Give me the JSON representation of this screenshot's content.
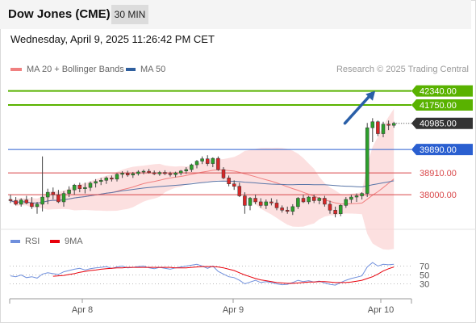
{
  "header": {
    "title": "Dow Jones (CME)",
    "interval": "30 MIN"
  },
  "datetime": "Wednesday, April 9, 2025 11:26:42 PM CET",
  "legend": {
    "main": [
      {
        "label": "MA 20 + Bollinger Bands",
        "color": "#f08080"
      },
      {
        "label": "MA 50",
        "color": "#2f5f9e"
      }
    ],
    "oscillator": [
      {
        "label": "RSI",
        "color": "#6f8fdc"
      },
      {
        "label": "9MA",
        "color": "#e8000b"
      }
    ]
  },
  "research": "Research © 2025 Trading Central",
  "colors": {
    "up_candle": "#2ca02c",
    "down_candle": "#d62728",
    "resistance": "#59b200",
    "pivot": "#2a5fd0",
    "support": "#d9484a",
    "arrow": "#2a5fa8",
    "band_fill": "#fbd5d5"
  },
  "chart_data": [
    {
      "type": "candlestick",
      "x_ticks": [
        "Apr 8",
        "Apr 9",
        "Apr 10"
      ],
      "ylim": [
        36550,
        42900
      ],
      "price_last": 40985.0,
      "levels": [
        {
          "value": 42340.0,
          "label": "42340.00",
          "kind": "resistance"
        },
        {
          "value": 41750.0,
          "label": "41750.00",
          "kind": "resistance"
        },
        {
          "value": 40985.0,
          "label": "40985.00",
          "kind": "last"
        },
        {
          "value": 39890.0,
          "label": "39890.00",
          "kind": "pivot"
        },
        {
          "value": 38910.0,
          "label": "38910.00",
          "kind": "support"
        },
        {
          "value": 38000.0,
          "label": "38000.00",
          "kind": "support"
        }
      ],
      "arrow": {
        "from": [
          62.8,
          40985
        ],
        "to": [
          68.5,
          42340
        ]
      },
      "ohlc": [
        [
          37800,
          38000,
          37650,
          37750
        ],
        [
          37750,
          37900,
          37550,
          37600
        ],
        [
          37600,
          37850,
          37500,
          37780
        ],
        [
          37780,
          37950,
          37600,
          37650
        ],
        [
          37650,
          37900,
          37400,
          37500
        ],
        [
          37500,
          37700,
          37200,
          37600
        ],
        [
          37600,
          39600,
          37300,
          37900
        ],
        [
          37900,
          38250,
          37600,
          38100
        ],
        [
          38100,
          38300,
          37800,
          38000
        ],
        [
          38000,
          38200,
          37650,
          37700
        ],
        [
          37700,
          38150,
          37500,
          38050
        ],
        [
          38050,
          38350,
          37900,
          38200
        ],
        [
          38200,
          38450,
          38000,
          38400
        ],
        [
          38400,
          38500,
          38100,
          38250
        ],
        [
          38250,
          38500,
          38050,
          38300
        ],
        [
          38300,
          38550,
          38150,
          38480
        ],
        [
          38480,
          38650,
          38300,
          38550
        ],
        [
          38550,
          38700,
          38400,
          38600
        ],
        [
          38600,
          38760,
          38450,
          38700
        ],
        [
          38700,
          38800,
          38550,
          38650
        ],
        [
          38650,
          38900,
          38550,
          38850
        ],
        [
          38850,
          38980,
          38700,
          38900
        ],
        [
          38900,
          39000,
          38750,
          38820
        ],
        [
          38820,
          38950,
          38700,
          38880
        ],
        [
          38880,
          39020,
          38800,
          38950
        ],
        [
          38950,
          39050,
          38850,
          38980
        ],
        [
          38980,
          39080,
          38880,
          38920
        ],
        [
          38920,
          39010,
          38820,
          38870
        ],
        [
          38870,
          38990,
          38790,
          38930
        ],
        [
          38930,
          39020,
          38820,
          38880
        ],
        [
          38880,
          38960,
          38760,
          38840
        ],
        [
          38840,
          38960,
          38730,
          38910
        ],
        [
          38910,
          39030,
          38810,
          38990
        ],
        [
          38990,
          39150,
          38870,
          39050
        ],
        [
          39050,
          39300,
          38950,
          39250
        ],
        [
          39250,
          39450,
          39100,
          39400
        ],
        [
          39400,
          39600,
          39280,
          39500
        ],
        [
          39500,
          39650,
          39200,
          39300
        ],
        [
          39300,
          39560,
          39150,
          39520
        ],
        [
          39520,
          39600,
          39000,
          39050
        ],
        [
          39050,
          39150,
          38650,
          38700
        ],
        [
          38700,
          38800,
          38350,
          38450
        ],
        [
          38450,
          38600,
          38200,
          38350
        ],
        [
          38350,
          38500,
          37900,
          37950
        ],
        [
          37950,
          38100,
          37200,
          37550
        ],
        [
          37550,
          37900,
          37350,
          37850
        ],
        [
          37850,
          38000,
          37600,
          37700
        ],
        [
          37700,
          37850,
          37450,
          37550
        ],
        [
          37550,
          37800,
          37400,
          37700
        ],
        [
          37700,
          37850,
          37550,
          37650
        ],
        [
          37650,
          37800,
          37350,
          37450
        ],
        [
          37450,
          37550,
          37250,
          37350
        ],
        [
          37350,
          37500,
          37200,
          37300
        ],
        [
          37300,
          37600,
          37150,
          37500
        ],
        [
          37500,
          37900,
          37400,
          37850
        ],
        [
          37850,
          38000,
          37650,
          37700
        ],
        [
          37700,
          37950,
          37600,
          37900
        ],
        [
          37900,
          38000,
          37650,
          37750
        ],
        [
          37750,
          37900,
          37600,
          37850
        ],
        [
          37850,
          37950,
          37500,
          37600
        ],
        [
          37600,
          37750,
          37200,
          37350
        ],
        [
          37350,
          37500,
          37050,
          37200
        ],
        [
          37200,
          37600,
          37100,
          37550
        ],
        [
          37550,
          37900,
          37450,
          37800
        ],
        [
          37800,
          38000,
          37650,
          37900
        ],
        [
          37900,
          38050,
          37700,
          37950
        ],
        [
          37950,
          38100,
          37800,
          38050
        ],
        [
          38050,
          41000,
          37900,
          40800
        ],
        [
          40800,
          41200,
          40200,
          41050
        ],
        [
          41050,
          41100,
          40450,
          40550
        ],
        [
          40550,
          41050,
          40400,
          40950
        ],
        [
          40950,
          41100,
          40700,
          40900
        ],
        [
          40900,
          41050,
          40800,
          40985
        ]
      ]
    },
    {
      "type": "line",
      "name": "RSI",
      "ylim": [
        0,
        100
      ],
      "ticks": [
        30,
        50,
        70
      ],
      "rsi": [
        48,
        46,
        50,
        44,
        46,
        43,
        52,
        55,
        53,
        51,
        57,
        60,
        63,
        65,
        61,
        64,
        66,
        67,
        69,
        65,
        68,
        70,
        66,
        67,
        69,
        70,
        66,
        64,
        67,
        65,
        63,
        66,
        68,
        70,
        72,
        74,
        70,
        65,
        70,
        58,
        52,
        46,
        44,
        38,
        30,
        34,
        38,
        33,
        35,
        33,
        30,
        28,
        29,
        33,
        38,
        35,
        37,
        34,
        36,
        32,
        29,
        27,
        33,
        38,
        42,
        45,
        48,
        68,
        78,
        70,
        74,
        73,
        74
      ],
      "ma9": [
        null,
        null,
        null,
        null,
        null,
        null,
        null,
        null,
        47,
        48,
        49,
        51,
        53,
        56,
        58,
        60,
        61,
        63,
        64,
        65,
        66,
        66,
        67,
        67,
        67,
        67,
        67,
        67,
        67,
        67,
        67,
        66,
        66,
        66,
        67,
        68,
        69,
        69,
        69,
        68,
        66,
        63,
        60,
        55,
        50,
        46,
        42,
        39,
        37,
        35,
        33,
        32,
        31,
        31,
        32,
        33,
        34,
        34,
        35,
        35,
        34,
        33,
        33,
        33,
        34,
        36,
        38,
        42,
        46,
        52,
        59,
        64,
        68
      ]
    }
  ]
}
